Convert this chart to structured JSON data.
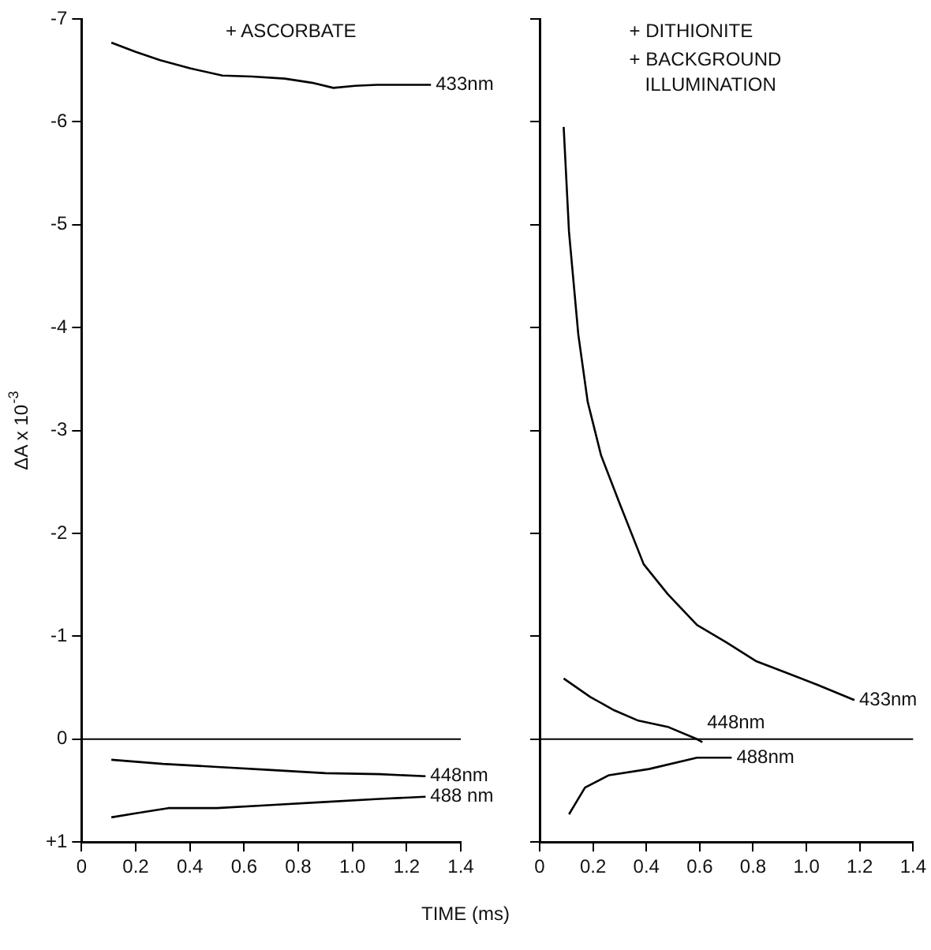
{
  "chart_data": [
    {
      "type": "line",
      "xlabel": "TIME (ms)",
      "ylabel": "ΔA x 10$^{-3}$",
      "annotations": [
        "+ ASCORBATE"
      ],
      "xlim": [
        0,
        1.4
      ],
      "xticks": [
        0,
        0.2,
        0.4,
        0.6,
        0.8,
        {
          "value": 1,
          "label": "1.0"
        },
        1.2,
        1.4
      ],
      "ylim": [
        1,
        -7
      ],
      "yticks": [
        -7,
        -6,
        -5,
        -4,
        -3,
        -2,
        -1,
        0,
        {
          "value": 1,
          "label": "+1"
        }
      ],
      "grid": false,
      "legend": false,
      "marker": "none",
      "line_style": "solid",
      "ref_lines": [
        {
          "axis": "y",
          "value": 0,
          "color": "#000000"
        }
      ],
      "series": [
        {
          "name": "433nm",
          "color": "#000000",
          "x": [
            0.11,
            0.2,
            0.29,
            0.4,
            0.52,
            0.63,
            0.75,
            0.85,
            0.93,
            1.01,
            1.09,
            1.2,
            1.29
          ],
          "values": [
            -6.77,
            -6.68,
            -6.6,
            -6.52,
            -6.45,
            -6.44,
            -6.42,
            -6.38,
            -6.33,
            -6.35,
            -6.36,
            -6.36,
            -6.36
          ]
        },
        {
          "name": "448nm",
          "color": "#000000",
          "x": [
            0.11,
            0.3,
            0.5,
            0.7,
            0.9,
            1.1,
            1.27
          ],
          "values": [
            0.2,
            0.24,
            0.27,
            0.3,
            0.33,
            0.34,
            0.36
          ]
        },
        {
          "name": "488 nm",
          "color": "#000000",
          "x": [
            0.11,
            0.2,
            0.32,
            0.5,
            0.7,
            0.9,
            1.1,
            1.27
          ],
          "values": [
            0.76,
            0.72,
            0.67,
            0.67,
            0.64,
            0.61,
            0.58,
            0.56
          ]
        }
      ]
    },
    {
      "type": "line",
      "annotations": [
        "+ DITHIONITE",
        "+ BACKGROUND ILLUMINATION"
      ],
      "xlim": [
        0,
        1.4
      ],
      "xticks": [
        0,
        0.2,
        0.4,
        0.6,
        0.8,
        {
          "value": 1,
          "label": "1.0"
        },
        1.2,
        1.4
      ],
      "ylim": [
        1,
        -7
      ],
      "yticks": [
        -7,
        -6,
        -5,
        -4,
        -3,
        -2,
        -1,
        0,
        1
      ],
      "tick_labels": "x",
      "grid": false,
      "legend": false,
      "marker": "none",
      "line_style": "solid",
      "ref_lines": [
        {
          "axis": "y",
          "value": 0,
          "color": "#000000"
        }
      ],
      "series": [
        {
          "name": "433nm",
          "color": "#000000",
          "x": [
            0.09,
            0.11,
            0.145,
            0.18,
            0.23,
            0.3,
            0.39,
            0.48,
            0.59,
            0.7,
            0.81,
            0.92,
            1.04,
            1.18
          ],
          "values": [
            -5.95,
            -4.93,
            -3.93,
            -3.28,
            -2.76,
            -2.29,
            -1.7,
            -1.41,
            -1.11,
            -0.94,
            -0.76,
            -0.65,
            -0.53,
            -0.38
          ]
        },
        {
          "name": "448nm",
          "color": "#000000",
          "x": [
            0.09,
            0.19,
            0.28,
            0.37,
            0.48,
            0.59,
            0.61
          ],
          "values": [
            -0.59,
            -0.41,
            -0.28,
            -0.18,
            -0.12,
            0,
            0.03
          ]
        },
        {
          "name": "488nm",
          "color": "#000000",
          "x": [
            0.11,
            0.17,
            0.26,
            0.41,
            0.59,
            0.72
          ],
          "values": [
            0.73,
            0.47,
            0.35,
            0.29,
            0.18,
            0.18
          ]
        }
      ]
    }
  ]
}
